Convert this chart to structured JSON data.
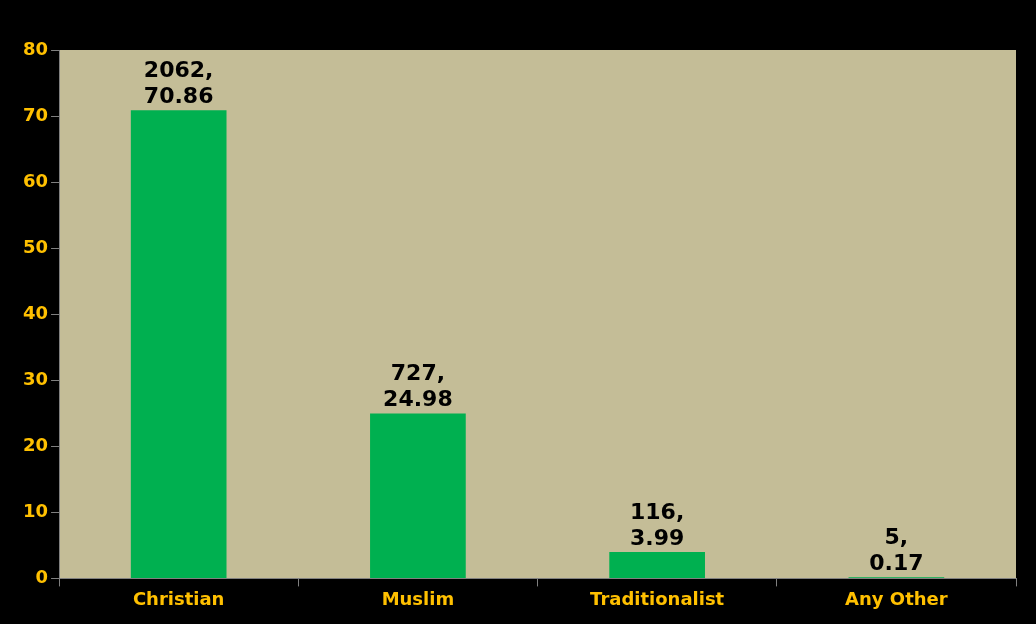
{
  "chart_data": {
    "type": "bar",
    "categories": [
      "Christian",
      "Muslim",
      "Traditionalist",
      "Any Other"
    ],
    "values": [
      70.86,
      24.98,
      3.99,
      0.17
    ],
    "color": "#00b050",
    "value_labels": [
      "2062,\n70.86",
      "727,\n24.98",
      "116,\n3.99",
      "5,\n0.17"
    ],
    "ylim": [
      0,
      80
    ],
    "yticks": [
      0,
      10,
      20,
      30,
      40,
      50,
      60,
      70,
      80
    ],
    "grid": false,
    "legend": false
  }
}
